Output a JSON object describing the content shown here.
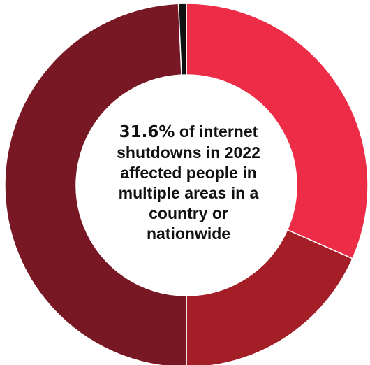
{
  "chart_data": {
    "type": "pie",
    "donut": true,
    "slices": [
      {
        "value": 31.6,
        "color": "#ED2C48"
      },
      {
        "value": 18.4,
        "color": "#A31E26"
      },
      {
        "value": 49.3,
        "color": "#771824"
      },
      {
        "value": 0.7,
        "color": "#111111"
      }
    ],
    "center_text": {
      "highlight": "31.6%",
      "text": " of internet shutdowns in 2022 affected people in multiple areas in a country or nationwide"
    }
  }
}
